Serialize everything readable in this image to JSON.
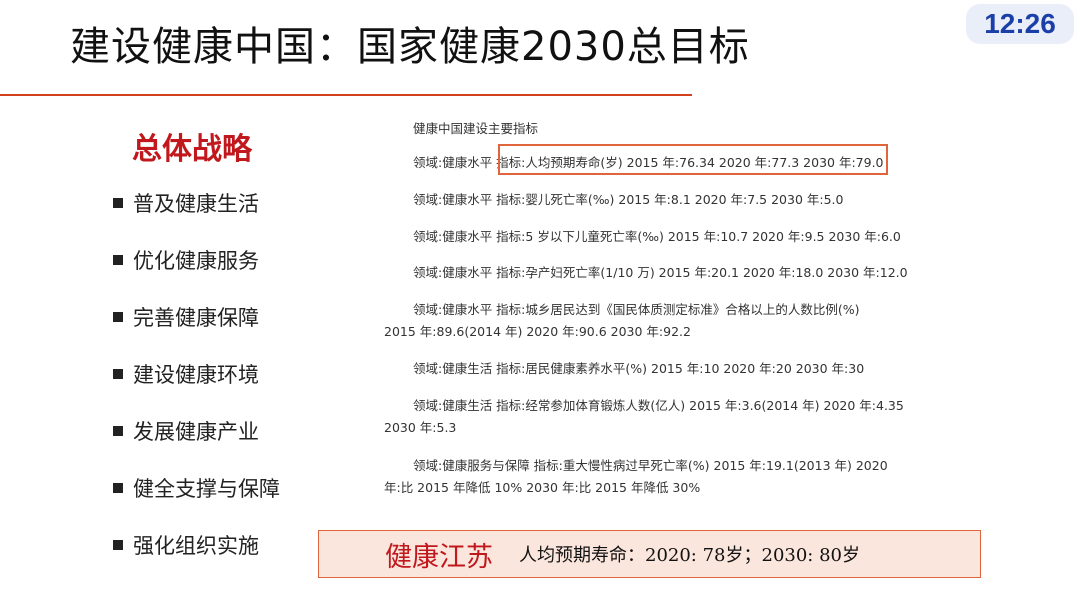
{
  "title": "建设健康中国：国家健康2030总目标",
  "clock": "12:26",
  "strategy": {
    "heading": "总体战略",
    "items": [
      "普及健康生活",
      "优化健康服务",
      "完善健康保障",
      "建设健康环境",
      "发展健康产业",
      "健全支撑与保障",
      "强化组织实施"
    ]
  },
  "indicators": {
    "title": "健康中国建设主要指标",
    "rows": [
      {
        "line1": "领域:健康水平  指标:人均预期寿命(岁) 2015 年:76.34 2020 年:77.3 2030 年:79.0",
        "line2": ""
      },
      {
        "line1": "领域:健康水平  指标:婴儿死亡率(‰) 2015 年:8.1 2020 年:7.5 2030 年:5.0",
        "line2": ""
      },
      {
        "line1": "领域:健康水平  指标:5 岁以下儿童死亡率(‰) 2015 年:10.7 2020 年:9.5 2030 年:6.0",
        "line2": ""
      },
      {
        "line1": "领域:健康水平  指标:孕产妇死亡率(1/10 万) 2015 年:20.1 2020 年:18.0 2030 年:12.0",
        "line2": ""
      },
      {
        "line1": "领域:健康水平  指标:城乡居民达到《国民体质测定标准》合格以上的人数比例(%)",
        "line2": "2015 年:89.6(2014 年) 2020 年:90.6 2030 年:92.2"
      },
      {
        "line1": "领域:健康生活  指标:居民健康素养水平(%) 2015 年:10 2020 年:20 2030 年:30",
        "line2": ""
      },
      {
        "line1": "领域:健康生活  指标:经常参加体育锻炼人数(亿人) 2015 年:3.6(2014 年) 2020 年:4.35",
        "line2": "2030 年:5.3"
      },
      {
        "line1": "领域:健康服务与保障  指标:重大慢性病过早死亡率(%) 2015 年:19.1(2013 年) 2020",
        "line2": "年:比 2015 年降低 10% 2030 年:比 2015 年降低 30%"
      }
    ]
  },
  "jiangsu": {
    "name": "健康江苏",
    "stat": "人均预期寿命：2020: 78岁；2030: 80岁"
  },
  "colors": {
    "accent_red": "#c0181c",
    "box_border": "#e0643c",
    "box_fill": "#fbe6dd",
    "clock_text": "#1b3fa8"
  }
}
